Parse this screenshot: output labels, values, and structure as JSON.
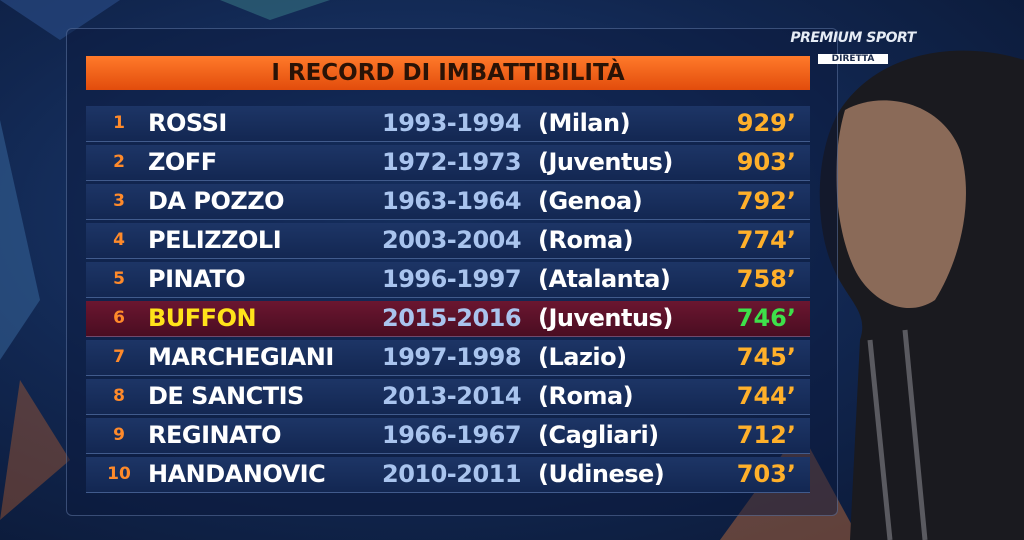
{
  "logo": {
    "brand": "PREMIUM SPORT",
    "badge": "DIRETTA"
  },
  "header": {
    "title": "I RECORD DI IMBATTIBILITÀ"
  },
  "table": {
    "rows": [
      [
        "1",
        "ROSSI",
        "1993-1994",
        "(Milan)",
        "929’"
      ],
      [
        "2",
        "ZOFF",
        "1972-1973",
        "(Juventus)",
        "903’"
      ],
      [
        "3",
        "DA POZZO",
        "1963-1964",
        "(Genoa)",
        "792’"
      ],
      [
        "4",
        "PELIZZOLI",
        "2003-2004",
        "(Roma)",
        "774’"
      ],
      [
        "5",
        "PINATO",
        "1996-1997",
        "(Atalanta)",
        "758’"
      ],
      [
        "6",
        "BUFFON",
        "2015-2016",
        "(Juventus)",
        "746’"
      ],
      [
        "7",
        "MARCHEGIANI",
        "1997-1998",
        "(Lazio)",
        "745’"
      ],
      [
        "8",
        "DE SANCTIS",
        "2013-2014",
        "(Roma)",
        "744’"
      ],
      [
        "9",
        "REGINATO",
        "1966-1967",
        "(Cagliari)",
        "712’"
      ],
      [
        "10",
        "HANDANOVIC",
        "2010-2011",
        "(Udinese)",
        "703’"
      ]
    ]
  }
}
